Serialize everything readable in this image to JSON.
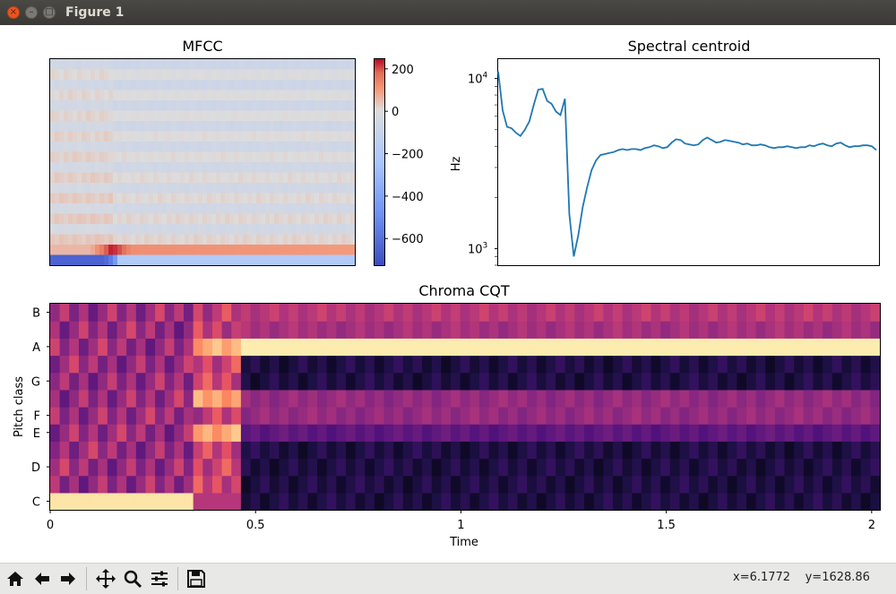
{
  "window": {
    "title": "Figure 1"
  },
  "titlebar_icons": {
    "close": "close-icon",
    "minimize": "minimize-icon",
    "maximize": "maximize-icon"
  },
  "toolbar": {
    "icons": [
      "home-icon",
      "back-arrow-icon",
      "forward-arrow-icon",
      "pan-move-icon",
      "zoom-magnifier-icon",
      "configure-subplots-icon",
      "save-floppy-icon"
    ],
    "coords": "x=6.1772    y=1628.86"
  },
  "chart_data": [
    {
      "type": "heatmap",
      "title": "MFCC",
      "rows": 20,
      "cols": 68,
      "colorbar": {
        "ticks": [
          200,
          0,
          -200,
          -400,
          -600
        ],
        "tick_labels": [
          "200",
          "0",
          "−200",
          "−400",
          "−600"
        ],
        "range": [
          -730,
          250
        ],
        "colormap": "coolwarm"
      },
      "coef0_values": [
        -650,
        -650,
        -650,
        -650,
        -650,
        -650,
        -650,
        -650,
        -650,
        -650,
        -650,
        -650,
        -620,
        -560,
        -450,
        -210,
        -200,
        -200
      ],
      "coef1_values": [
        60,
        60,
        60,
        60,
        60,
        60,
        60,
        60,
        60,
        80,
        120,
        150,
        190,
        230,
        220,
        200,
        170,
        140
      ],
      "colors": {
        "neg": "#3b4cc0",
        "mid": "#dddcdc",
        "pos": "#b40426"
      }
    },
    {
      "type": "line",
      "title": "Spectral centroid",
      "ylabel": "Hz",
      "yscale": "log",
      "ylim": [
        800,
        13000
      ],
      "yticks": [
        1000,
        10000
      ],
      "series": [
        {
          "color": "#1f77b4",
          "points": [
            [
              0,
              11000
            ],
            [
              1,
              6500
            ],
            [
              2,
              5200
            ],
            [
              3,
              5100
            ],
            [
              4,
              4800
            ],
            [
              5,
              4600
            ],
            [
              6,
              5000
            ],
            [
              7,
              5600
            ],
            [
              8,
              7000
            ],
            [
              9,
              8600
            ],
            [
              10,
              8700
            ],
            [
              11,
              7400
            ],
            [
              12,
              7100
            ],
            [
              13,
              6400
            ],
            [
              14,
              6100
            ],
            [
              15,
              7600
            ],
            [
              16,
              1600
            ],
            [
              17,
              900
            ],
            [
              18,
              1200
            ],
            [
              19,
              1750
            ],
            [
              20,
              2300
            ],
            [
              21,
              2900
            ],
            [
              22,
              3300
            ],
            [
              23,
              3550
            ],
            [
              24,
              3600
            ],
            [
              25,
              3650
            ],
            [
              26,
              3700
            ],
            [
              27,
              3800
            ],
            [
              28,
              3850
            ],
            [
              29,
              3800
            ],
            [
              30,
              3850
            ],
            [
              31,
              3850
            ],
            [
              32,
              3800
            ],
            [
              33,
              3900
            ],
            [
              34,
              3950
            ],
            [
              35,
              4050
            ],
            [
              36,
              4000
            ],
            [
              37,
              3900
            ],
            [
              38,
              3950
            ],
            [
              39,
              4200
            ],
            [
              40,
              4400
            ],
            [
              41,
              4350
            ],
            [
              42,
              4150
            ],
            [
              43,
              4100
            ],
            [
              44,
              4050
            ],
            [
              45,
              4100
            ],
            [
              46,
              4350
            ],
            [
              47,
              4500
            ],
            [
              48,
              4350
            ],
            [
              49,
              4200
            ],
            [
              50,
              4250
            ],
            [
              51,
              4350
            ],
            [
              52,
              4300
            ],
            [
              53,
              4250
            ],
            [
              54,
              4200
            ],
            [
              55,
              4100
            ],
            [
              56,
              4150
            ],
            [
              57,
              4050
            ],
            [
              58,
              4050
            ],
            [
              59,
              4100
            ],
            [
              60,
              4050
            ],
            [
              61,
              3950
            ],
            [
              62,
              3900
            ],
            [
              63,
              3950
            ],
            [
              64,
              3950
            ],
            [
              65,
              4000
            ],
            [
              66,
              3950
            ],
            [
              67,
              3900
            ],
            [
              68,
              3950
            ],
            [
              69,
              3950
            ],
            [
              70,
              4050
            ],
            [
              71,
              4000
            ],
            [
              72,
              4100
            ],
            [
              73,
              4150
            ],
            [
              74,
              4050
            ],
            [
              75,
              4000
            ],
            [
              76,
              4150
            ],
            [
              77,
              4200
            ],
            [
              78,
              4050
            ],
            [
              79,
              3950
            ],
            [
              80,
              4000
            ],
            [
              81,
              4000
            ],
            [
              82,
              4050
            ],
            [
              83,
              4050
            ],
            [
              84,
              4000
            ],
            [
              85,
              3800
            ]
          ]
        }
      ]
    },
    {
      "type": "heatmap",
      "title": "Chroma CQT",
      "xlabel": "Time",
      "ylabel": "Pitch class",
      "xlim": [
        0,
        2.02
      ],
      "xticks": [
        0,
        0.5,
        1,
        1.5,
        2
      ],
      "xtick_labels": [
        "0",
        "0.5",
        "1",
        "1.5",
        "2"
      ],
      "ytick_labels": [
        "C",
        "D",
        "E",
        "F",
        "G",
        "A",
        "B"
      ],
      "pitch_classes": 12,
      "frames": 87,
      "colormap": "magma"
    }
  ]
}
